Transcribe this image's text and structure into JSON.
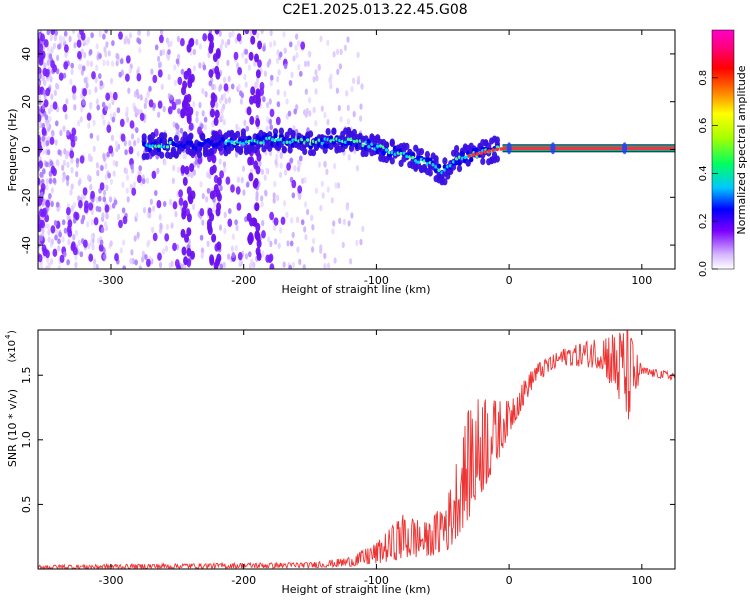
{
  "title": "C2E1.2025.013.22.45.G08",
  "chart_data": [
    {
      "type": "heatmap",
      "xlabel": "Height of straight line (km)",
      "ylabel": "Frequency (Hz)",
      "xlim": [
        -355,
        125
      ],
      "ylim": [
        -50,
        50
      ],
      "x_ticks": [
        -300,
        -200,
        -100,
        0,
        100
      ],
      "y_ticks": [
        -40,
        -20,
        0,
        20,
        40
      ],
      "colorbar": {
        "label": "Normalized spectral amplitude",
        "range": [
          0,
          1
        ],
        "ticks": [
          0.0,
          0.2,
          0.4,
          0.6,
          0.8
        ],
        "colors": [
          "#ffffff",
          "#d6b7ff",
          "#7a00ff",
          "#0000ff",
          "#00c8ff",
          "#00ff60",
          "#a8ff00",
          "#ffff00",
          "#ff8000",
          "#ff0000",
          "#ff0080",
          "#ff00c8"
        ]
      },
      "signal_track": [
        {
          "x": -270,
          "y": 1.5
        },
        {
          "x": -205,
          "y": 3
        },
        {
          "x": -180,
          "y": 4
        },
        {
          "x": -150,
          "y": 3
        },
        {
          "x": -120,
          "y": 4
        },
        {
          "x": -100,
          "y": 1
        },
        {
          "x": -80,
          "y": -2
        },
        {
          "x": -60,
          "y": -6
        },
        {
          "x": -50,
          "y": -10
        },
        {
          "x": -40,
          "y": -4
        },
        {
          "x": -25,
          "y": -2
        },
        {
          "x": -10,
          "y": 0
        },
        {
          "x": 0,
          "y": 0.5
        },
        {
          "x": 125,
          "y": 0.5
        }
      ]
    },
    {
      "type": "line",
      "xlabel": "Height of straight line (km)",
      "ylabel": "SNR (10 * v/v)",
      "scale_label": "(x10",
      "scale_exp": "4",
      "xlim": [
        -355,
        125
      ],
      "ylim": [
        0,
        1.85
      ],
      "x_ticks": [
        -300,
        -200,
        -100,
        0,
        100
      ],
      "y_ticks": [
        0.5,
        1.0,
        1.5
      ],
      "color": "#ee3333",
      "envelope": [
        {
          "x": -355,
          "lo": 0.0,
          "hi": 0.03
        },
        {
          "x": -150,
          "lo": 0.01,
          "hi": 0.05
        },
        {
          "x": -120,
          "lo": 0.02,
          "hi": 0.09
        },
        {
          "x": -100,
          "lo": 0.04,
          "hi": 0.2
        },
        {
          "x": -80,
          "lo": 0.08,
          "hi": 0.42
        },
        {
          "x": -60,
          "lo": 0.1,
          "hi": 0.35
        },
        {
          "x": -45,
          "lo": 0.15,
          "hi": 0.6
        },
        {
          "x": -30,
          "lo": 0.4,
          "hi": 1.25
        },
        {
          "x": -20,
          "lo": 0.6,
          "hi": 1.35
        },
        {
          "x": -10,
          "lo": 0.8,
          "hi": 1.3
        },
        {
          "x": 0,
          "lo": 1.05,
          "hi": 1.3
        },
        {
          "x": 20,
          "lo": 1.45,
          "hi": 1.58
        },
        {
          "x": 40,
          "lo": 1.58,
          "hi": 1.7
        },
        {
          "x": 70,
          "lo": 1.55,
          "hi": 1.8
        },
        {
          "x": 90,
          "lo": 1.15,
          "hi": 1.85
        },
        {
          "x": 100,
          "lo": 1.5,
          "hi": 1.56
        },
        {
          "x": 125,
          "lo": 1.46,
          "hi": 1.52
        }
      ]
    }
  ]
}
